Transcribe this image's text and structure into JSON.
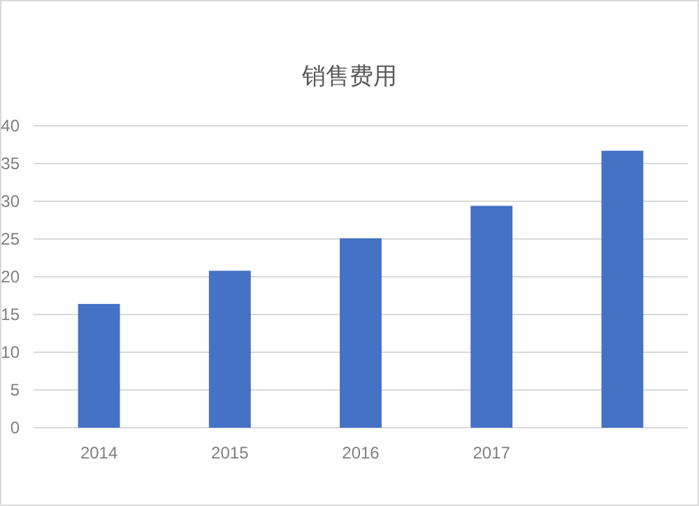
{
  "chart_data": {
    "type": "bar",
    "title": "销售费用",
    "categories": [
      "2014",
      "2015",
      "2016",
      "2017",
      null
    ],
    "values": [
      16.4,
      20.8,
      25.1,
      29.4,
      36.7
    ],
    "color": "#4472c4",
    "ylim": [
      0,
      40
    ],
    "yticks": [
      0,
      5,
      10,
      15,
      20,
      25,
      30,
      35,
      40
    ],
    "grid": "y"
  }
}
